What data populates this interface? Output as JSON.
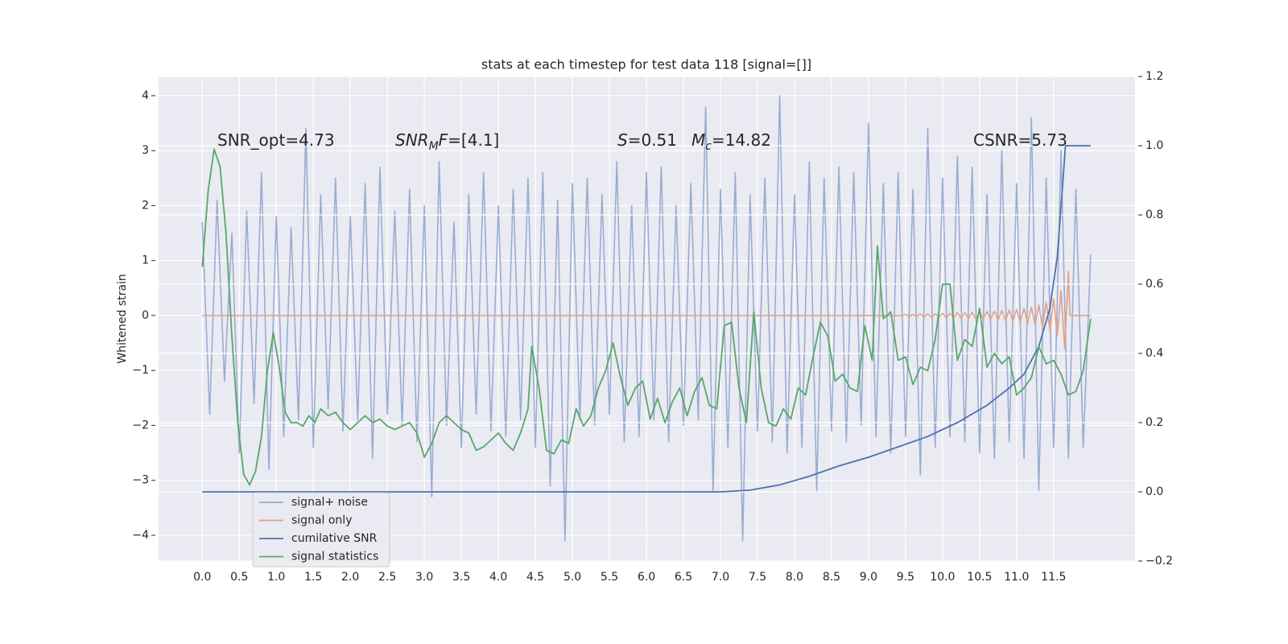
{
  "chart_data": {
    "type": "line",
    "title": "stats at each timestep for test data 118 [signal=[]]",
    "ylabel": "Whitened strain",
    "xlim": [
      -0.59,
      12.6
    ],
    "ylim": [
      -4.47,
      4.35
    ],
    "y2lim": [
      -0.2,
      1.2
    ],
    "xticks": [
      {
        "value": 0,
        "label": "0.0"
      },
      0.5,
      {
        "value": 1,
        "label": "1.0"
      },
      1.5,
      {
        "value": 2,
        "label": "2.0"
      },
      2.5,
      {
        "value": 3,
        "label": "3.0"
      },
      3.5,
      {
        "value": 4,
        "label": "4.0"
      },
      4.5,
      {
        "value": 5,
        "label": "5.0"
      },
      5.5,
      {
        "value": 6,
        "label": "6.0"
      },
      6.5,
      {
        "value": 7,
        "label": "7.0"
      },
      7.5,
      {
        "value": 8,
        "label": "8.0"
      },
      8.5,
      {
        "value": 9,
        "label": "9.0"
      },
      9.5,
      {
        "value": 10,
        "label": "10.0"
      },
      10.5,
      {
        "value": 11,
        "label": "11.0"
      },
      11.5
    ],
    "yticks": [
      {
        "value": -4,
        "label": "−4"
      },
      {
        "value": -3,
        "label": "−3"
      },
      {
        "value": -2,
        "label": "−2"
      },
      {
        "value": -1,
        "label": "−1"
      },
      0,
      1,
      2,
      3,
      4
    ],
    "y2ticks": [
      {
        "value": -0.2,
        "label": "−0.2"
      },
      {
        "value": 0,
        "label": "0.0"
      },
      0.2,
      0.4,
      0.6,
      0.8,
      {
        "value": 1,
        "label": "1.0"
      },
      1.2
    ],
    "grid": true,
    "legend": "lower left",
    "annotations": [
      [
        "SNR_opt=4.73"
      ],
      [
        "SNR",
        "M",
        "F",
        "=[4.1]"
      ],
      [
        "S",
        "=0.51"
      ],
      [
        "M",
        "c",
        "=14.82"
      ],
      [
        "CSNR=5.73"
      ]
    ],
    "series": [
      {
        "name": "signal+ noise",
        "color": "#9aacd2",
        "x": [
          0,
          0.1,
          0.2,
          0.3,
          0.4,
          0.5,
          0.6,
          0.7,
          0.8,
          0.9,
          1.0,
          1.1,
          1.2,
          1.3,
          1.4,
          1.5,
          1.6,
          1.7,
          1.8,
          1.9,
          2.0,
          2.1,
          2.2,
          2.3,
          2.4,
          2.5,
          2.6,
          2.7,
          2.8,
          2.9,
          3.0,
          3.1,
          3.2,
          3.3,
          3.4,
          3.5,
          3.6,
          3.7,
          3.8,
          3.9,
          4.0,
          4.1,
          4.2,
          4.3,
          4.4,
          4.5,
          4.6,
          4.7,
          4.8,
          4.9,
          5.0,
          5.1,
          5.2,
          5.3,
          5.4,
          5.5,
          5.6,
          5.7,
          5.8,
          5.9,
          6.0,
          6.1,
          6.2,
          6.3,
          6.4,
          6.5,
          6.6,
          6.7,
          6.8,
          6.9,
          7.0,
          7.1,
          7.2,
          7.3,
          7.4,
          7.5,
          7.6,
          7.7,
          7.8,
          7.9,
          8.0,
          8.1,
          8.2,
          8.3,
          8.4,
          8.5,
          8.6,
          8.7,
          8.8,
          8.9,
          9.0,
          9.1,
          9.2,
          9.3,
          9.4,
          9.5,
          9.6,
          9.7,
          9.8,
          9.9,
          10.0,
          10.1,
          10.2,
          10.3,
          10.4,
          10.5,
          10.6,
          10.7,
          10.8,
          10.9,
          11.0,
          11.1,
          11.2,
          11.3,
          11.4,
          11.5,
          11.6,
          11.7,
          11.8,
          11.9,
          12.0
        ],
        "values": [
          1.7,
          -1.8,
          2.1,
          -1.2,
          1.5,
          -2.5,
          1.9,
          -1.6,
          2.6,
          -2.8,
          1.8,
          -2.2,
          1.6,
          -1.9,
          3.4,
          -2.4,
          2.2,
          -1.7,
          2.5,
          -2.1,
          1.8,
          -1.9,
          2.4,
          -2.6,
          2.7,
          -1.8,
          1.9,
          -2.0,
          2.3,
          -2.3,
          2.0,
          -3.3,
          2.8,
          -2.0,
          1.7,
          -2.4,
          2.2,
          -1.8,
          2.6,
          -2.1,
          2.0,
          -2.2,
          2.3,
          -1.9,
          2.5,
          -2.4,
          2.6,
          -3.1,
          2.1,
          -4.1,
          2.4,
          -1.9,
          2.5,
          -2.0,
          2.2,
          -1.8,
          2.8,
          -2.3,
          2.0,
          -2.2,
          2.6,
          -1.9,
          2.7,
          -2.3,
          2.0,
          -2.0,
          2.4,
          -1.9,
          3.8,
          -3.2,
          2.3,
          -2.4,
          2.6,
          -4.1,
          2.2,
          -2.1,
          2.5,
          -2.3,
          4.0,
          -2.5,
          2.2,
          -2.4,
          2.8,
          -3.2,
          2.5,
          -2.1,
          2.7,
          -2.3,
          2.6,
          -2.0,
          3.5,
          -2.2,
          2.4,
          -2.5,
          2.6,
          -2.2,
          2.3,
          -2.9,
          3.4,
          -2.4,
          2.5,
          -2.2,
          2.9,
          -2.3,
          2.7,
          -2.5,
          2.2,
          -2.6,
          3.0,
          -2.3,
          2.4,
          -2.6,
          3.6,
          -3.2,
          2.5,
          -2.4,
          3.0,
          -2.6,
          2.3,
          -2.4,
          1.1
        ]
      },
      {
        "name": "signal only",
        "color": "#e0a184",
        "x": [
          0,
          9.45,
          9.5,
          9.55,
          9.6,
          9.65,
          9.7,
          9.75,
          9.8,
          9.85,
          9.9,
          9.95,
          10.0,
          10.05,
          10.1,
          10.15,
          10.2,
          10.25,
          10.3,
          10.35,
          10.4,
          10.45,
          10.5,
          10.55,
          10.6,
          10.65,
          10.7,
          10.75,
          10.8,
          10.85,
          10.9,
          10.95,
          11.0,
          11.05,
          11.1,
          11.15,
          11.2,
          11.25,
          11.3,
          11.35,
          11.4,
          11.45,
          11.5,
          11.55,
          11.6,
          11.65,
          11.7,
          11.72,
          12.0
        ],
        "values": [
          0,
          0,
          0.02,
          -0.02,
          0.02,
          -0.02,
          0.03,
          -0.03,
          0.03,
          -0.03,
          0.03,
          -0.03,
          0.04,
          -0.04,
          0.04,
          -0.04,
          0.05,
          -0.05,
          0.05,
          -0.05,
          0.06,
          -0.06,
          0.06,
          -0.06,
          0.07,
          -0.07,
          0.08,
          -0.08,
          0.09,
          -0.09,
          0.1,
          -0.1,
          0.11,
          -0.12,
          0.13,
          -0.14,
          0.15,
          -0.17,
          0.19,
          -0.21,
          0.24,
          -0.27,
          0.3,
          -0.36,
          0.45,
          -0.6,
          0.8,
          0,
          0
        ]
      },
      {
        "name": "cumilative SNR",
        "color": "#4c72b0",
        "axis": "y2",
        "x": [
          0,
          7.0,
          7.4,
          7.8,
          8.2,
          8.6,
          9.0,
          9.4,
          9.8,
          10.2,
          10.6,
          10.9,
          11.1,
          11.3,
          11.45,
          11.55,
          11.62,
          11.66,
          12.0
        ],
        "values": [
          0,
          0,
          0.005,
          0.02,
          0.045,
          0.075,
          0.1,
          0.13,
          0.16,
          0.2,
          0.25,
          0.3,
          0.34,
          0.42,
          0.53,
          0.68,
          0.88,
          1.0,
          1.0
        ]
      },
      {
        "name": "signal statistics",
        "color": "#55a868",
        "axis": "y2",
        "x": [
          0,
          0.08,
          0.16,
          0.24,
          0.32,
          0.4,
          0.48,
          0.56,
          0.64,
          0.72,
          0.8,
          0.88,
          0.96,
          1.04,
          1.12,
          1.2,
          1.28,
          1.36,
          1.44,
          1.52,
          1.6,
          1.7,
          1.8,
          1.9,
          2.0,
          2.1,
          2.2,
          2.3,
          2.4,
          2.5,
          2.6,
          2.7,
          2.8,
          2.9,
          3.0,
          3.1,
          3.2,
          3.3,
          3.4,
          3.5,
          3.6,
          3.7,
          3.8,
          3.9,
          4.0,
          4.1,
          4.2,
          4.3,
          4.4,
          4.45,
          4.55,
          4.65,
          4.75,
          4.85,
          4.95,
          5.05,
          5.15,
          5.25,
          5.35,
          5.45,
          5.55,
          5.65,
          5.75,
          5.85,
          5.95,
          6.05,
          6.15,
          6.25,
          6.35,
          6.45,
          6.55,
          6.65,
          6.75,
          6.85,
          6.95,
          7.05,
          7.15,
          7.25,
          7.35,
          7.45,
          7.55,
          7.65,
          7.75,
          7.85,
          7.95,
          8.05,
          8.15,
          8.25,
          8.35,
          8.45,
          8.55,
          8.65,
          8.75,
          8.85,
          8.95,
          9.05,
          9.12,
          9.2,
          9.3,
          9.4,
          9.5,
          9.6,
          9.7,
          9.8,
          9.9,
          10.0,
          10.1,
          10.2,
          10.3,
          10.4,
          10.5,
          10.6,
          10.7,
          10.8,
          10.9,
          11.0,
          11.1,
          11.2,
          11.3,
          11.4,
          11.5,
          11.6,
          11.7,
          11.8,
          11.9,
          12.0
        ],
        "values": [
          0.65,
          0.87,
          0.99,
          0.94,
          0.75,
          0.45,
          0.2,
          0.05,
          0.02,
          0.06,
          0.16,
          0.35,
          0.46,
          0.36,
          0.23,
          0.2,
          0.2,
          0.19,
          0.22,
          0.2,
          0.24,
          0.22,
          0.23,
          0.2,
          0.18,
          0.2,
          0.22,
          0.2,
          0.21,
          0.19,
          0.18,
          0.19,
          0.2,
          0.17,
          0.1,
          0.14,
          0.2,
          0.22,
          0.2,
          0.18,
          0.17,
          0.12,
          0.13,
          0.15,
          0.17,
          0.14,
          0.12,
          0.17,
          0.24,
          0.42,
          0.3,
          0.12,
          0.11,
          0.15,
          0.14,
          0.24,
          0.19,
          0.22,
          0.3,
          0.35,
          0.43,
          0.33,
          0.25,
          0.3,
          0.32,
          0.21,
          0.27,
          0.2,
          0.26,
          0.3,
          0.22,
          0.29,
          0.33,
          0.25,
          0.24,
          0.48,
          0.49,
          0.3,
          0.2,
          0.52,
          0.3,
          0.2,
          0.19,
          0.24,
          0.21,
          0.3,
          0.28,
          0.39,
          0.49,
          0.45,
          0.32,
          0.34,
          0.3,
          0.29,
          0.48,
          0.38,
          0.71,
          0.5,
          0.52,
          0.38,
          0.39,
          0.31,
          0.36,
          0.35,
          0.44,
          0.6,
          0.6,
          0.38,
          0.44,
          0.42,
          0.53,
          0.36,
          0.4,
          0.37,
          0.39,
          0.28,
          0.3,
          0.33,
          0.42,
          0.37,
          0.38,
          0.34,
          0.28,
          0.29,
          0.35,
          0.5
        ]
      }
    ]
  }
}
